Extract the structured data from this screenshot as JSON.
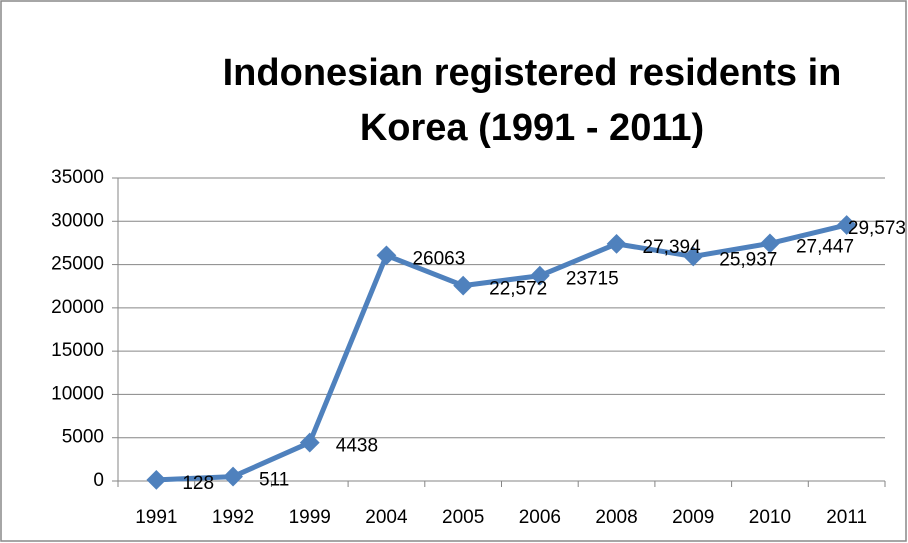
{
  "chart_data": {
    "type": "line",
    "title": [
      "Indonesian registered residents in",
      "Korea (1991 - 2011)"
    ],
    "categories": [
      "1991",
      "1992",
      "1999",
      "2004",
      "2005",
      "2006",
      "2008",
      "2009",
      "2010",
      "2011"
    ],
    "series": [
      {
        "name": "Indonesian registered residents",
        "color": "#4f81bd",
        "values": [
          128,
          511,
          4438,
          26063,
          22572,
          23715,
          27394,
          25937,
          27447,
          29573
        ],
        "value_labels": [
          "128",
          "511",
          "4438",
          "26063",
          "22,572",
          "23715",
          "27,394",
          "25,937",
          "27,447",
          "29,573"
        ]
      }
    ],
    "ylim": [
      0,
      35000
    ],
    "yticks": [
      0,
      5000,
      10000,
      15000,
      20000,
      25000,
      30000,
      35000
    ],
    "grid": true
  }
}
